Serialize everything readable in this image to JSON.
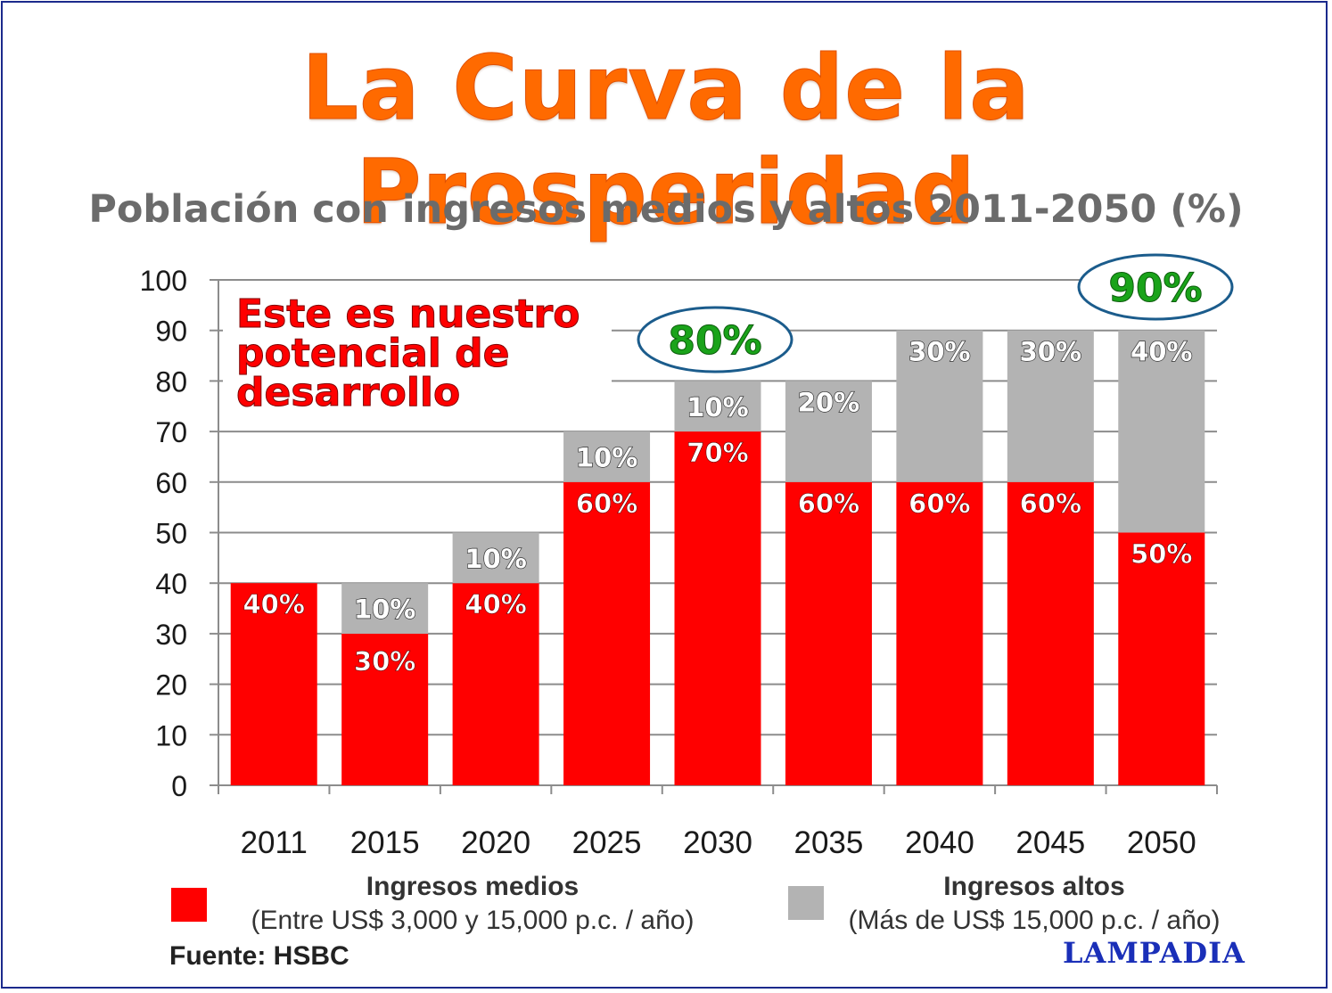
{
  "title": "La Curva de la Prosperidad",
  "colors": {
    "medios": "#ff0000",
    "altos": "#b3b3b3",
    "title": "#ff6a00",
    "ellipse_text": "#1aa31a",
    "ellipse_border": "#1b5c8c",
    "brand": "#1a2fb8"
  },
  "chart_data": {
    "type": "bar",
    "stacked": true,
    "title": "Población con ingresos medios y altos 2011-2050 (%)",
    "categories": [
      "2011",
      "2015",
      "2020",
      "2025",
      "2030",
      "2035",
      "2040",
      "2045",
      "2050"
    ],
    "series": [
      {
        "name": "Ingresos medios",
        "values": [
          40,
          30,
          40,
          60,
          70,
          60,
          60,
          60,
          50
        ],
        "labels": [
          "40%",
          "30%",
          "40%",
          "60%",
          "70%",
          "60%",
          "60%",
          "60%",
          "50%"
        ]
      },
      {
        "name": "Ingresos altos",
        "values": [
          0,
          10,
          10,
          10,
          10,
          20,
          30,
          30,
          40
        ],
        "labels": [
          "",
          "10%",
          "10%",
          "10%",
          "10%",
          "20%",
          "30%",
          "30%",
          "40%"
        ]
      }
    ],
    "yticks": [
      "0",
      "10",
      "20",
      "30",
      "40",
      "50",
      "60",
      "70",
      "80",
      "90",
      "100"
    ],
    "ylim": [
      0,
      100
    ],
    "grid": true,
    "callout": {
      "lines": [
        "Este es nuestro",
        "potencial de",
        "desarrollo"
      ]
    },
    "highlights": [
      {
        "category": "2030",
        "label": "80%"
      },
      {
        "category": "2050",
        "label": "90%"
      }
    ]
  },
  "legend": {
    "medios": {
      "title": "Ingresos medios",
      "detail": "(Entre US$ 3,000 y 15,000 p.c. / año)"
    },
    "altos": {
      "title": "Ingresos altos",
      "detail": "(Más de US$ 15,000 p.c. / año)"
    }
  },
  "source": "Fuente: HSBC",
  "brand": "LAMPADIA"
}
